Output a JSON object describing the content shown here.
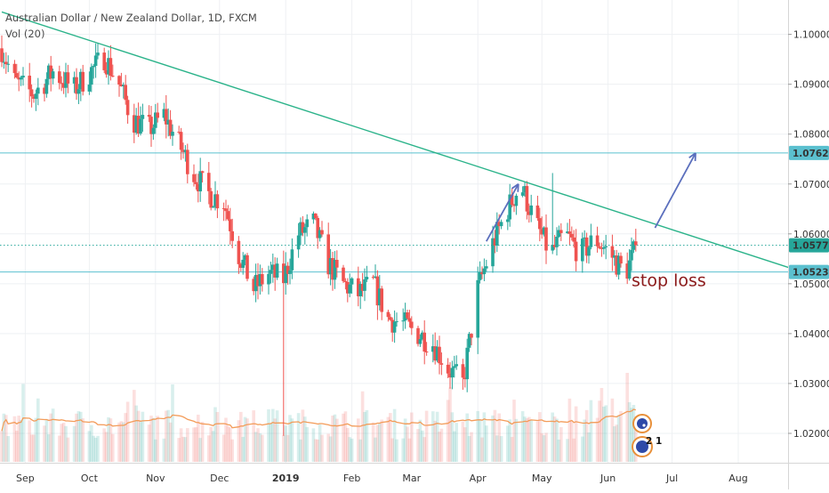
{
  "header": {
    "title": "Australian Dollar / New Zealand Dollar, 1D, FXCM",
    "indicator": "Vol (20)"
  },
  "chart_data": {
    "type": "candlestick",
    "symbol": "AUDNZD",
    "timeframe": "1D",
    "ylim": [
      1.015,
      1.106
    ],
    "y_ticks": [
      "1.10000",
      "1.09000",
      "1.08000",
      "1.07000",
      "1.06000",
      "1.05000",
      "1.04000",
      "1.03000",
      "1.02000"
    ],
    "x_ticks": [
      "Sep",
      "Oct",
      "Nov",
      "Dec",
      "2019",
      "Feb",
      "Mar",
      "Apr",
      "May",
      "Jun",
      "Jul",
      "Aug"
    ],
    "price_tags": [
      {
        "value": 1.07622,
        "label": "1.07622",
        "kind": "resistance"
      },
      {
        "value": 1.05772,
        "label": "1.05772",
        "kind": "last"
      },
      {
        "value": 1.05237,
        "label": "1.05237",
        "kind": "support"
      }
    ],
    "trendline": {
      "start": [
        "2018-08-21",
        1.1045
      ],
      "end": [
        "2019-08-25",
        1.0532
      ]
    },
    "projection_arrow": {
      "start": [
        "2019-06-23",
        1.0612
      ],
      "end": [
        "2019-07-12",
        1.0762
      ]
    },
    "rally_arrow": {
      "start": [
        "2019-04-05",
        1.0585
      ],
      "end": [
        "2019-04-20",
        1.07
      ]
    },
    "annotation": "stop loss",
    "volume_ma_period": 20,
    "waypoints": [
      [
        "2018-08-21",
        1.0972
      ],
      [
        "2018-08-27",
        1.0905
      ],
      [
        "2018-09-05",
        1.088
      ],
      [
        "2018-09-14",
        1.0925
      ],
      [
        "2018-09-24",
        1.089
      ],
      [
        "2018-10-08",
        1.0955
      ],
      [
        "2018-10-15",
        1.09
      ],
      [
        "2018-10-21",
        1.083
      ],
      [
        "2018-10-29",
        1.081
      ],
      [
        "2018-11-05",
        1.0838
      ],
      [
        "2018-11-12",
        1.078
      ],
      [
        "2018-11-19",
        1.072
      ],
      [
        "2018-11-26",
        1.068
      ],
      [
        "2018-12-03",
        1.0665
      ],
      [
        "2018-12-10",
        1.056
      ],
      [
        "2018-12-17",
        1.049
      ],
      [
        "2018-12-24",
        1.052
      ],
      [
        "2018-12-31",
        1.051
      ],
      [
        "2019-01-07",
        1.06
      ],
      [
        "2019-01-14",
        1.062
      ],
      [
        "2019-01-21",
        1.054
      ],
      [
        "2019-01-28",
        1.05
      ],
      [
        "2019-02-04",
        1.048
      ],
      [
        "2019-02-11",
        1.05
      ],
      [
        "2019-02-18",
        1.043
      ],
      [
        "2019-02-25",
        1.042
      ],
      [
        "2019-03-04",
        1.04
      ],
      [
        "2019-03-11",
        1.038
      ],
      [
        "2019-03-18",
        1.033
      ],
      [
        "2019-03-25",
        1.03
      ],
      [
        "2019-04-01",
        1.049
      ],
      [
        "2019-04-08",
        1.058
      ],
      [
        "2019-04-15",
        1.065
      ],
      [
        "2019-04-21",
        1.07
      ],
      [
        "2019-04-28",
        1.062
      ],
      [
        "2019-05-05",
        1.056
      ],
      [
        "2019-05-12",
        1.06
      ],
      [
        "2019-05-19",
        1.056
      ],
      [
        "2019-05-26",
        1.059
      ],
      [
        "2019-06-02",
        1.056
      ],
      [
        "2019-06-09",
        1.052
      ],
      [
        "2019-06-14",
        1.057
      ]
    ]
  }
}
